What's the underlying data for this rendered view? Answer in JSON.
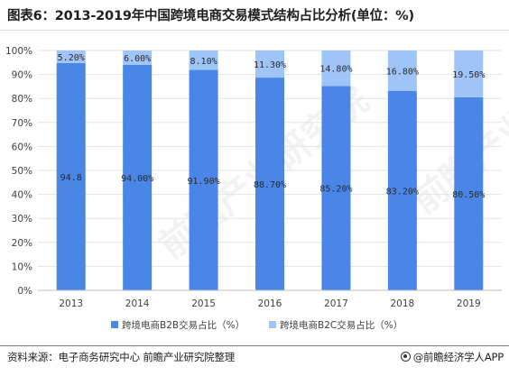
{
  "title": "图表6：2013-2019年中国跨境电商交易模式结构占比分析(单位：%)",
  "source": "资料来源：电子商务研究中心 前瞻产业研究院整理",
  "credit": "@前瞻经济学人APP",
  "watermark": "前瞻产业研究院",
  "colors": {
    "b2b": "#4a86e8",
    "b2c": "#9fc5f8",
    "grid": "#e3e3e3",
    "axis_text": "#404040"
  },
  "chart_data": {
    "type": "bar",
    "stacked": true,
    "categories": [
      "2013",
      "2014",
      "2015",
      "2016",
      "2017",
      "2018",
      "2019"
    ],
    "series": [
      {
        "name": "跨境电商B2B交易占比（%）",
        "values": [
          94.8,
          94.0,
          91.9,
          88.7,
          85.2,
          83.2,
          80.5
        ],
        "labels": [
          "94.8",
          "94.00%",
          "91.90%",
          "88.70%",
          "85.20%",
          "83.20%",
          "80.50%"
        ]
      },
      {
        "name": "跨境电商B2C交易占比（%）",
        "values": [
          5.2,
          6.0,
          8.1,
          11.3,
          14.8,
          16.8,
          19.5
        ],
        "labels": [
          "5.20%",
          "6.00%",
          "8.10%",
          "11.30%",
          "14.80%",
          "16.80%",
          "19.50%"
        ]
      }
    ],
    "ylim": [
      0,
      100
    ],
    "yticks": [
      "0%",
      "10%",
      "20%",
      "30%",
      "40%",
      "50%",
      "60%",
      "70%",
      "80%",
      "90%",
      "100%"
    ],
    "grid": true,
    "legend": "bottom"
  }
}
